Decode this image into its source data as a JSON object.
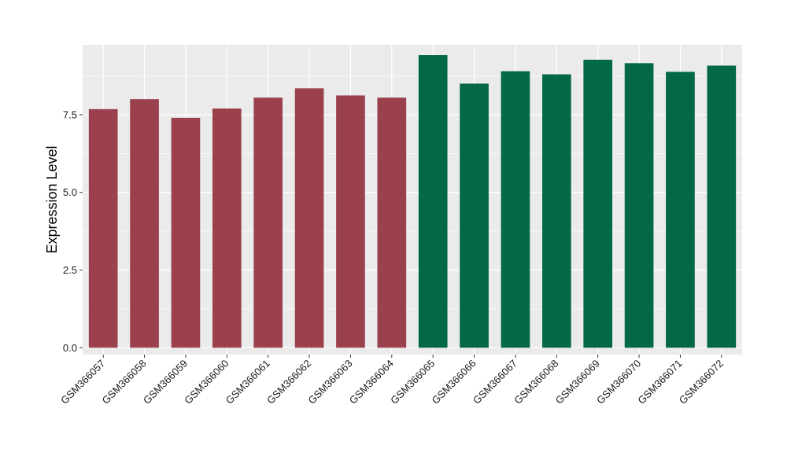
{
  "chart_data": {
    "type": "bar",
    "title": "",
    "xlabel": "",
    "ylabel": "Expression Level",
    "ylim": [
      -0.22,
      9.75
    ],
    "yticks": [
      0.0,
      2.5,
      5.0,
      7.5
    ],
    "ytick_labels": [
      "0.0",
      "2.5",
      "5.0",
      "7.5"
    ],
    "grid": true,
    "legend": "none",
    "categories": [
      "GSM366057",
      "GSM366058",
      "GSM366059",
      "GSM366060",
      "GSM366061",
      "GSM366062",
      "GSM366063",
      "GSM366064",
      "GSM366065",
      "GSM366066",
      "GSM366067",
      "GSM366068",
      "GSM366069",
      "GSM366070",
      "GSM366071",
      "GSM366072"
    ],
    "values": [
      7.68,
      8.0,
      7.4,
      7.7,
      8.05,
      8.35,
      8.12,
      8.05,
      9.42,
      8.5,
      8.9,
      8.8,
      9.27,
      9.16,
      8.88,
      9.08
    ],
    "bar_colors": [
      "#9b414e",
      "#9b414e",
      "#9b414e",
      "#9b414e",
      "#9b414e",
      "#9b414e",
      "#9b414e",
      "#9b414e",
      "#036845",
      "#036845",
      "#036845",
      "#036845",
      "#036845",
      "#036845",
      "#036845",
      "#036845"
    ],
    "panel_background": "#ebebeb",
    "grid_color": "#ffffff"
  }
}
